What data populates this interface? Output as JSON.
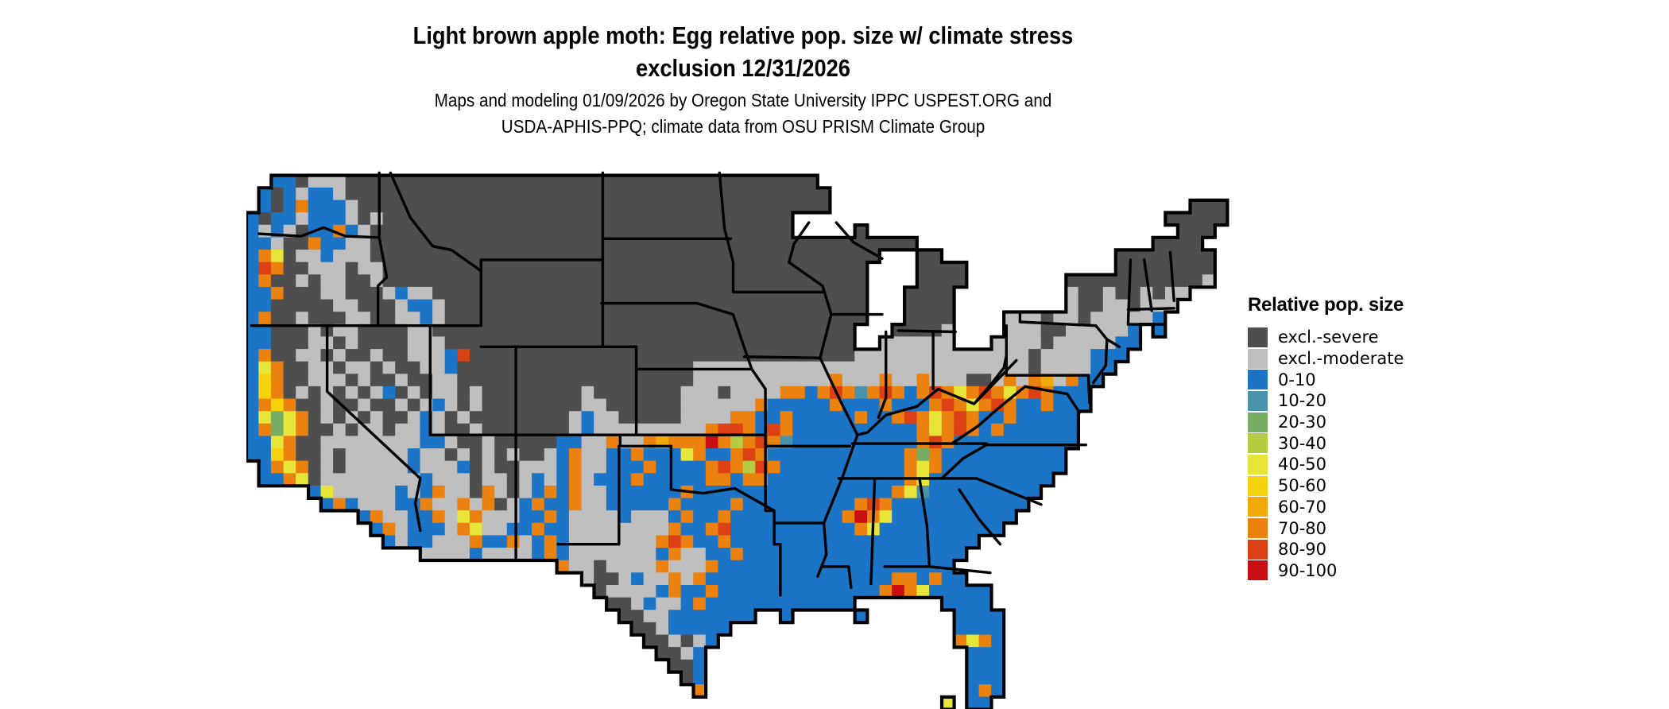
{
  "title": {
    "line1": "Light brown apple moth: Egg relative pop. size w/ climate stress",
    "line2": "exclusion 12/31/2026"
  },
  "subtitle": {
    "line1": "Maps and modeling 01/09/2026 by Oregon State University IPPC USPEST.ORG and",
    "line2": "USDA-APHIS-PPQ; climate data from OSU PRISM Climate Group"
  },
  "legend": {
    "title": "Relative pop. size",
    "items": [
      {
        "label": "excl.-severe",
        "color": "#4E4E4E"
      },
      {
        "label": "excl.-moderate",
        "color": "#BFBFBF"
      },
      {
        "label": "0-10",
        "color": "#1B74C5"
      },
      {
        "label": "10-20",
        "color": "#4B92AB"
      },
      {
        "label": "20-30",
        "color": "#77AC63"
      },
      {
        "label": "30-40",
        "color": "#B4CC41"
      },
      {
        "label": "40-50",
        "color": "#E7E539"
      },
      {
        "label": "50-60",
        "color": "#F5D20E"
      },
      {
        "label": "60-70",
        "color": "#F0A90A"
      },
      {
        "label": "70-80",
        "color": "#EB8210"
      },
      {
        "label": "80-90",
        "color": "#DB4114"
      },
      {
        "label": "90-100",
        "color": "#C90E13"
      }
    ]
  },
  "map": {
    "outline_color": "#000000",
    "cols": 80,
    "rows": 44,
    "palette": {
      "D": "#4E4E4E",
      "L": "#BFBFBF",
      "B": "#1B74C5",
      "T": "#4B92AB",
      "G": "#77AC63",
      "Y": "#B4CC41",
      "y": "#E7E539",
      "g": "#F5D20E",
      "o": "#F0A90A",
      "O": "#EB8210",
      "r": "#DB4114",
      "R": "#C90E13"
    },
    "grid": [
      "................................................................................",
      "..BBDLLLDDDDDDDDDDDDDDDDDDDDDDDDDDDDDDDDDDDDDD................................",
      ".BDBLBBLDDDDDDDDDDDDDDDDDDDDDDDDDDDDDDDDDDDDDDD.................................",
      ".BDBOBBBLDDDDDDDDDDDDDDDDDDDDDDDDDDDDDDDDDDDDDD.............................DDD.",
      "BDBBLBBBLDLDDDDDDDDDDDDDDDDDDDDDDDDDDDDDDDDD..............................DDDDD",
      "BLBLDBBOBLDDDDDDDDDDDDDDDDDDDDDDDDDDDDDDDDDD.....D.........................DDD.",
      "BBLDDOBBLLDDDDDDDDDDDDDDDDDDDDDDDDDDDDDDDDDDDDDDDDDDDD...................DDDD.",
      "BOyDLLBLLLDDDDDDDDDDDDDDDDDDDDDDDDDDDDDDDDDDDDDDDDD...DD..............DDDDDDDD.",
      "BrODDLLLDLLDDDDDDDDDDDDDDDDDDDDDDDDDDDDDDDDDDDDDDD....DDDD............DDDDDDDD.",
      "BODDLDLLDDLDDDDDDDDDDDDDDDDDDDDDDDDDDDDDDDDDDDDDDD....DDDD........DDDDDDDDDDDL.",
      "BBODDDLLDDDLBLLDDDDDDDDDDDDDDDDDDDDDDDDDDDDDDDDDDD...DDDD.........LDDLDDLDLL...",
      "BBDDDDDLLDDDLBBLDDDDDDDDDDDDDDDDDDDDDDDDDDDDDDDDDD...DDDD.........LDDLLDLLL....",
      "BODDLDDDLLDDLLBLDDDDDDDDDDDDDDDDDDDDDDDDDDDDDDDDDD...DDDD....LLLDLLDLLLLLB.....",
      "BBDDDLDLLDDDDLLDDDDDDDDDDDDDDDDDDDDDDDDDDDDDDDDDD...DDDDL....LLLDDLLLLLB.B....",
      "BBDDDLLDLDDDDLLLDDDDDDDDDDDDDDDDDDDDDDDDDDDDDDDDD..LLLLLL...LLLLDLLLLLBB......",
      "BODDLLDLDDLDDLLLBrDDDDDDDDDDDDDDDDDDDDDDDDDDDDDDDLLLLLLLLLLLLLLDLLLLBBB.......",
      "ByODDLLDLLDLDDLLBDDDDDDDDDDDDDDDDDDDLLLLLLLLLLLLLLLLLLLLLLLLLLLDLLLLBB..........",
      "BgODDLLLDLDDLDDLLDDDDDDDDDDDDDDDDDDDLLLLLLLLLLLOLLLOLLOLLLDDLOLOoLOBB...........",
      "BgODLDLDLDLBDLDLLDLDDDDDDDDLDDDDDDDLLLDLLLLOOBOrOTOrOBOrOyOrOyOrOBBB............",
      "BOgODDLDDLDDLDLBLDLDDDDDDDDLLDDDDDDLLLLLLOBBBBBOBBBOBBBOrOyOrOBBOBBB............",
      "ByGyODLDLDLDDLBLDLDDDDDDDDLBLLDDDDDLLLLOOBBOBBBBBOBBOrOyOrOBBOBBBBB.............",
      "BOGyODDLDLLDLLBLDDLDDDDDDDLBLLLLLLLLLOrrOBrOBBBBBBBBBBOyOrOBOBBBBBB.............",
      "BByODDLLLLLLLLBBLDDLDDDDDBBLLOLLOoOOOROYOrOTBBBBBBBBBBOrOBBBBBBBBBB.............",
      "BBgODDLDLLLLLBLLDLDLDLDDLBOLLBBOBBByOBBOrOBBBBBBBBBBBOGOBBBBBBBBBB.............",
      ".BOyODLDLLLLLBLLLBDLDDLLLBOLLBBBOBBBBOrOYrOBBBBBBBBBBOyOBBBBBBBBBB..............",
      ".BBOyDLLLLLLLLBLLLDLLDLBLBOLBBBOBBBBBOOBOOBBBBBBBBBBBOyBBBBBBBBBB...............",
      ".....ByLLLLLBLBOLLDOLDLBOBOLLBBBBBBOBBBBBBBBBBBBBBBBOyTBBBBBBBBB................",
      "......BOBLLLBBOLLOLODLBOBBOLLBBBBBOBBBBOBBBBBBBBBOrOBBBBBBBBBBB.................",
      ".........BOLLBBOLyOLLLBBOBLLLLBLLLBOBBOBBBBBBBBBOROyBBBBBBBBBB..................",
      "..........BOLBBBLOyLLBBOBBLLLLLLLLOBBOrBBBBBBBBBBOyBBBBBBBBBB...................",
      "...........BLBBLLLOBBOLBOBLLLLLLLOrOBBOBBBBBBBBBBBBBBBBBBBB....................",
      "..............LLLLBLLLLBOBLLLLLLLBOLLBBOBBBBBBBBBBBBBBBBBB.....................",
      ".........................OLLDLLLLOLLLOBBBBBBBBBBBBBBBBBBB......................",
      "...........................LDDLBLLOLOBBBBBBBBBBBBBBBOOBOBB......................",
      "............................DLLLLBOBBOBBBBBBBBBBBBBOROyBBBBB....................",
      ".............................DDLBLLBOBBBBBBBBBBBB.......BBBB....................",
      "..............................DDLLBBBBBBB..B.....B.......BBBB...................",
      "...............................DDLBBBBB..................BBBB...................",
      "................................DDLDLB...................OyOB...................",
      ".................................DDLB.....................BBB...................",
      "..................................DDB.....................BBB...................",
      "...................................DB.....................BBB...................",
      "....................................O.....................BOB...................",
      "........................................................y.BB...................."
    ],
    "borders": [
      [
        [
          1.0,
          5.7
        ],
        [
          4.4,
          5.9
        ],
        [
          6.2,
          5.2
        ],
        [
          8.0,
          5.9
        ],
        [
          10.7,
          6.0
        ]
      ],
      [
        [
          10.7,
          0.8
        ],
        [
          10.7,
          6.0
        ]
      ],
      [
        [
          10.7,
          6.0
        ],
        [
          11.3,
          9.2
        ],
        [
          10.6,
          9.9
        ],
        [
          10.6,
          13.1
        ]
      ],
      [
        [
          0.4,
          13.1
        ],
        [
          18.9,
          13.1
        ]
      ],
      [
        [
          6.5,
          13.1
        ],
        [
          6.5,
          18.4
        ],
        [
          14.0,
          25.4
        ],
        [
          13.6,
          27.4
        ],
        [
          14.0,
          29.6
        ]
      ],
      [
        [
          18.9,
          8.7
        ],
        [
          16.5,
          7.0
        ],
        [
          15.0,
          6.7
        ],
        [
          13.2,
          4.4
        ],
        [
          12.4,
          2.6
        ],
        [
          11.6,
          0.8
        ]
      ],
      [
        [
          18.9,
          13.1
        ],
        [
          18.9,
          7.8
        ]
      ],
      [
        [
          18.9,
          7.8
        ],
        [
          28.7,
          7.8
        ]
      ],
      [
        [
          28.7,
          0.8
        ],
        [
          28.7,
          14.8
        ]
      ],
      [
        [
          28.7,
          6.1
        ],
        [
          39.0,
          6.1
        ]
      ],
      [
        [
          28.6,
          11.3
        ],
        [
          36.3,
          11.3
        ],
        [
          39.2,
          12.2
        ],
        [
          39.9,
          14.3
        ],
        [
          40.7,
          16.6
        ]
      ],
      [
        [
          31.4,
          16.6
        ],
        [
          40.7,
          16.6
        ]
      ],
      [
        [
          40.7,
          16.6
        ],
        [
          41.8,
          18.2
        ],
        [
          41.8,
          21.9
        ]
      ],
      [
        [
          18.9,
          14.8
        ],
        [
          31.4,
          14.8
        ]
      ],
      [
        [
          21.7,
          14.8
        ],
        [
          21.7,
          21.9
        ]
      ],
      [
        [
          14.8,
          13.1
        ],
        [
          14.8,
          21.9
        ]
      ],
      [
        [
          14.8,
          21.9
        ],
        [
          41.8,
          21.9
        ]
      ],
      [
        [
          21.7,
          21.9
        ],
        [
          21.7,
          31.9
        ]
      ],
      [
        [
          31.4,
          14.8
        ],
        [
          31.4,
          21.9
        ]
      ],
      [
        [
          30.1,
          21.9
        ],
        [
          30.1,
          22.8
        ]
      ],
      [
        [
          30.1,
          22.8
        ],
        [
          34.2,
          22.8
        ],
        [
          34.2,
          26.3
        ],
        [
          36.8,
          26.6
        ],
        [
          39.3,
          26.2
        ],
        [
          42.5,
          28.0
        ]
      ],
      [
        [
          30.0,
          22.8
        ],
        [
          30.0,
          30.7
        ],
        [
          25.1,
          30.7
        ]
      ],
      [
        [
          41.8,
          21.9
        ],
        [
          41.8,
          28.0
        ],
        [
          42.5,
          28.0
        ]
      ],
      [
        [
          41.8,
          22.8
        ],
        [
          48.6,
          22.8
        ]
      ],
      [
        [
          43.7,
          8.0
        ],
        [
          46.4,
          9.9
        ],
        [
          47.1,
          12.2
        ],
        [
          46.2,
          15.7
        ],
        [
          47.8,
          19.1
        ],
        [
          49.2,
          21.9
        ],
        [
          48.0,
          25.3
        ],
        [
          46.5,
          29.0
        ],
        [
          46.7,
          31.5
        ],
        [
          46.0,
          33.3
        ]
      ],
      [
        [
          38.1,
          0.8
        ],
        [
          38.5,
          5.3
        ],
        [
          39.2,
          8.0
        ],
        [
          39.2,
          10.4
        ]
      ],
      [
        [
          39.2,
          10.4
        ],
        [
          46.4,
          10.4
        ]
      ],
      [
        [
          40.1,
          15.6
        ],
        [
          46.2,
          15.7
        ]
      ],
      [
        [
          47.3,
          12.2
        ],
        [
          51.2,
          12.2
        ]
      ],
      [
        [
          51.5,
          13.6
        ],
        [
          51.5,
          18.9
        ],
        [
          50.9,
          20.5
        ]
      ],
      [
        [
          55.3,
          13.6
        ],
        [
          55.3,
          18.2
        ]
      ],
      [
        [
          62.0,
          15.9
        ],
        [
          58.6,
          19.4
        ],
        [
          55.7,
          18.2
        ],
        [
          54.0,
          19.6
        ],
        [
          51.5,
          20.3
        ],
        [
          50.0,
          21.7
        ],
        [
          49.2,
          21.9
        ]
      ],
      [
        [
          52.5,
          13.5
        ],
        [
          57.1,
          13.6
        ]
      ],
      [
        [
          47.5,
          4.8
        ],
        [
          48.9,
          6.4
        ],
        [
          51.2,
          7.7
        ]
      ],
      [
        [
          45.3,
          4.8
        ],
        [
          44.1,
          6.5
        ],
        [
          43.7,
          8.0
        ]
      ],
      [
        [
          62.3,
          12.2
        ],
        [
          62.3,
          12.8
        ],
        [
          68.4,
          13.1
        ]
      ],
      [
        [
          61.2,
          13.1
        ],
        [
          61.2,
          15.5
        ]
      ],
      [
        [
          61.2,
          15.5
        ],
        [
          61.2,
          17.1
        ],
        [
          67.8,
          17.1
        ]
      ],
      [
        [
          61.2,
          15.5
        ],
        [
          61.0,
          16.5
        ],
        [
          59.9,
          17.9
        ],
        [
          58.6,
          19.4
        ]
      ],
      [
        [
          62.7,
          18.0
        ],
        [
          66.1,
          18.6
        ],
        [
          67.1,
          20.1
        ]
      ],
      [
        [
          62.7,
          18.0
        ],
        [
          60.5,
          19.8
        ],
        [
          58.9,
          21.2
        ],
        [
          56.8,
          22.6
        ]
      ],
      [
        [
          59.6,
          22.7
        ],
        [
          67.6,
          22.7
        ]
      ],
      [
        [
          48.8,
          22.6
        ],
        [
          59.6,
          22.6
        ]
      ],
      [
        [
          59.6,
          22.7
        ],
        [
          57.7,
          23.8
        ],
        [
          56.0,
          25.4
        ]
      ],
      [
        [
          47.7,
          25.4
        ],
        [
          58.8,
          25.4
        ]
      ],
      [
        [
          58.8,
          25.4
        ],
        [
          64.0,
          27.5
        ]
      ],
      [
        [
          50.6,
          25.4
        ],
        [
          50.3,
          33.9
        ]
      ],
      [
        [
          54.2,
          25.4
        ],
        [
          54.8,
          29.2
        ],
        [
          55.0,
          32.5
        ]
      ],
      [
        [
          51.4,
          32.5
        ],
        [
          55.0,
          32.5
        ]
      ],
      [
        [
          46.4,
          32.5
        ],
        [
          48.5,
          32.5
        ],
        [
          48.7,
          34.2
        ]
      ],
      [
        [
          55.0,
          32.5
        ],
        [
          59.9,
          33.0
        ]
      ],
      [
        [
          57.4,
          26.3
        ],
        [
          59.0,
          28.7
        ],
        [
          60.7,
          30.7
        ]
      ],
      [
        [
          43.0,
          34.8
        ],
        [
          43.0,
          30.7
        ],
        [
          42.5,
          30.7
        ],
        [
          42.5,
          28.0
        ]
      ],
      [
        [
          42.5,
          29.0
        ],
        [
          46.5,
          29.0
        ]
      ],
      [
        [
          68.4,
          13.1
        ],
        [
          69.3,
          14.2
        ],
        [
          69.2,
          16.3
        ],
        [
          68.2,
          17.7
        ]
      ],
      [
        [
          69.3,
          14.2
        ],
        [
          70.3,
          14.8
        ]
      ],
      [
        [
          67.8,
          17.1
        ],
        [
          67.9,
          19.3
        ]
      ],
      [
        [
          71.2,
          7.8
        ],
        [
          71.0,
          13.0
        ]
      ],
      [
        [
          72.3,
          7.8
        ],
        [
          72.9,
          11.9
        ]
      ],
      [
        [
          71.0,
          11.8
        ],
        [
          74.7,
          11.7
        ]
      ],
      [
        [
          71.0,
          13.0
        ],
        [
          73.8,
          13.0
        ]
      ],
      [
        [
          74.4,
          7.2
        ],
        [
          74.7,
          11.1
        ]
      ]
    ]
  }
}
